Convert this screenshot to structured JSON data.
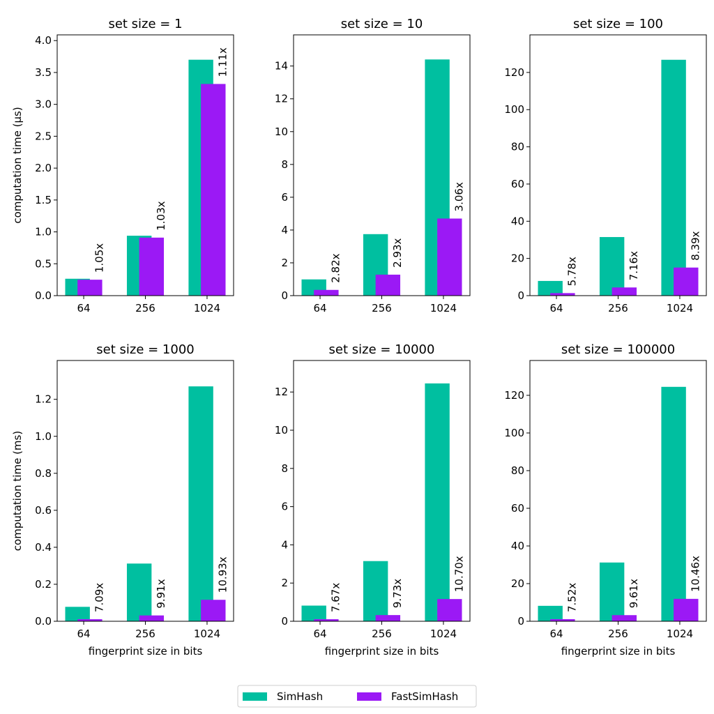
{
  "chart_data": [
    {
      "type": "bar",
      "title": "set size = 1",
      "categories": [
        "64",
        "256",
        "1024"
      ],
      "ylabel": "computation time (µs)",
      "xlabel": "",
      "ylim": [
        0,
        4.09
      ],
      "yticks": [
        "0.0",
        "0.5",
        "1.0",
        "1.5",
        "2.0",
        "2.5",
        "3.0",
        "3.5",
        "4.0"
      ],
      "ytick_values": [
        0,
        0.5,
        1,
        1.5,
        2,
        2.5,
        3,
        3.5,
        4
      ],
      "series": [
        {
          "name": "SimHash",
          "values": [
            0.265,
            0.94,
            3.7
          ]
        },
        {
          "name": "FastSimHash",
          "values": [
            0.25,
            0.91,
            3.32
          ]
        }
      ],
      "annotations": [
        "1.05x",
        "1.03x",
        "1.11x"
      ]
    },
    {
      "type": "bar",
      "title": "set size = 10",
      "categories": [
        "64",
        "256",
        "1024"
      ],
      "ylabel": "",
      "xlabel": "",
      "ylim": [
        0,
        15.9
      ],
      "yticks": [
        "0",
        "2",
        "4",
        "6",
        "8",
        "10",
        "12",
        "14"
      ],
      "ytick_values": [
        0,
        2,
        4,
        6,
        8,
        10,
        12,
        14
      ],
      "series": [
        {
          "name": "SimHash",
          "values": [
            0.99,
            3.75,
            14.4
          ]
        },
        {
          "name": "FastSimHash",
          "values": [
            0.35,
            1.28,
            4.7
          ]
        }
      ],
      "annotations": [
        "2.82x",
        "2.93x",
        "3.06x"
      ]
    },
    {
      "type": "bar",
      "title": "set size = 100",
      "categories": [
        "64",
        "256",
        "1024"
      ],
      "ylabel": "",
      "xlabel": "",
      "ylim": [
        0,
        140.2
      ],
      "yticks": [
        "0",
        "20",
        "40",
        "60",
        "80",
        "100",
        "120"
      ],
      "ytick_values": [
        0,
        20,
        40,
        60,
        80,
        100,
        120
      ],
      "series": [
        {
          "name": "SimHash",
          "values": [
            7.9,
            31.5,
            126.8
          ]
        },
        {
          "name": "FastSimHash",
          "values": [
            1.37,
            4.4,
            15.1
          ]
        }
      ],
      "annotations": [
        "5.78x",
        "7.16x",
        "8.39x"
      ]
    },
    {
      "type": "bar",
      "title": "set size = 1000",
      "categories": [
        "64",
        "256",
        "1024"
      ],
      "ylabel": "computation time (ms)",
      "xlabel": "fingerprint size in bits",
      "ylim": [
        0,
        1.41
      ],
      "yticks": [
        "0.0",
        "0.2",
        "0.4",
        "0.6",
        "0.8",
        "1.0",
        "1.2"
      ],
      "ytick_values": [
        0,
        0.2,
        0.4,
        0.6,
        0.8,
        1.0,
        1.2
      ],
      "series": [
        {
          "name": "SimHash",
          "values": [
            0.078,
            0.312,
            1.27
          ]
        },
        {
          "name": "FastSimHash",
          "values": [
            0.011,
            0.0315,
            0.116
          ]
        }
      ],
      "annotations": [
        "7.09x",
        "9.91x",
        "10.93x"
      ]
    },
    {
      "type": "bar",
      "title": "set size = 10000",
      "categories": [
        "64",
        "256",
        "1024"
      ],
      "ylabel": "",
      "xlabel": "fingerprint size in bits",
      "ylim": [
        0,
        13.65
      ],
      "yticks": [
        "0",
        "2",
        "4",
        "6",
        "8",
        "10",
        "12"
      ],
      "ytick_values": [
        0,
        2,
        4,
        6,
        8,
        10,
        12
      ],
      "series": [
        {
          "name": "SimHash",
          "values": [
            0.82,
            3.15,
            12.45
          ]
        },
        {
          "name": "FastSimHash",
          "values": [
            0.107,
            0.324,
            1.163
          ]
        }
      ],
      "annotations": [
        "7.67x",
        "9.73x",
        "10.70x"
      ]
    },
    {
      "type": "bar",
      "title": "set size = 100000",
      "categories": [
        "64",
        "256",
        "1024"
      ],
      "ylabel": "",
      "xlabel": "fingerprint size in bits",
      "ylim": [
        0,
        138.5
      ],
      "yticks": [
        "0",
        "20",
        "40",
        "60",
        "80",
        "100",
        "120"
      ],
      "ytick_values": [
        0,
        20,
        40,
        60,
        80,
        100,
        120
      ],
      "series": [
        {
          "name": "SimHash",
          "values": [
            8.2,
            31.2,
            124.5
          ]
        },
        {
          "name": "FastSimHash",
          "values": [
            1.1,
            3.25,
            11.9
          ]
        }
      ],
      "annotations": [
        "7.52x",
        "9.61x",
        "10.46x"
      ]
    }
  ],
  "legend": {
    "placement": "bottom-center",
    "items": [
      {
        "label": "SimHash",
        "color": "#00bfa0"
      },
      {
        "label": "FastSimHash",
        "color": "#9b19f5"
      }
    ]
  }
}
